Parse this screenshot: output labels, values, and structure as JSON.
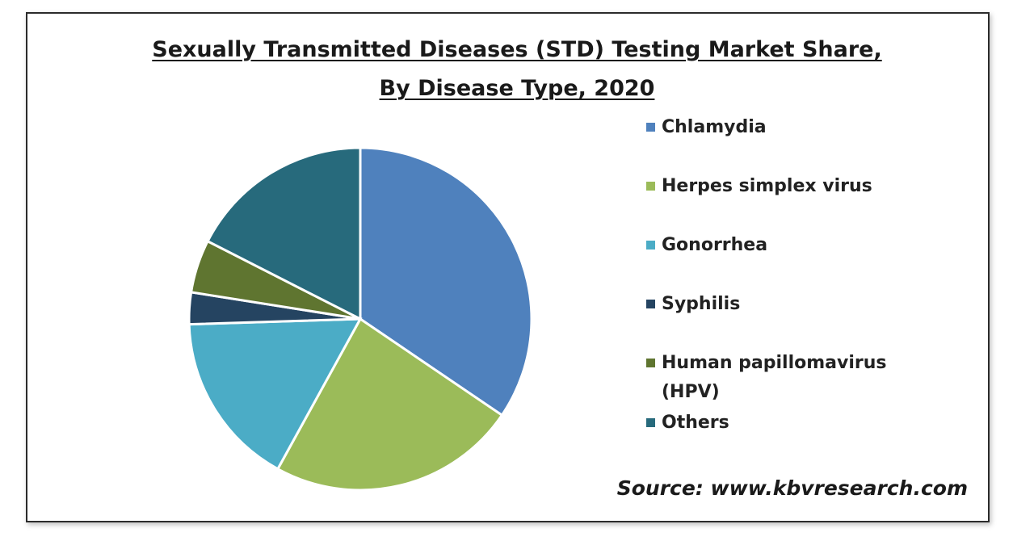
{
  "chart_data": {
    "type": "pie",
    "title_line1": "Sexually Transmitted Diseases (STD) Testing Market Share,",
    "title_line2": "By Disease Type, 2020",
    "slices": [
      {
        "label": "Chlamydia",
        "value": 34.5,
        "color": "#4f81bd"
      },
      {
        "label": "Herpes simplex virus",
        "value": 23.5,
        "color": "#9bbb59"
      },
      {
        "label": "Gonorrhea",
        "value": 16.5,
        "color": "#4bacc6"
      },
      {
        "label": "Syphilis",
        "value": 3.0,
        "color": "#254461"
      },
      {
        "label": "Human papillomavirus (HPV)",
        "value": 5.0,
        "color": "#5f7530"
      },
      {
        "label": "Others",
        "value": 17.5,
        "color": "#276a7c"
      }
    ],
    "legend_position": "right",
    "source": "Source: www.kbvresearch.com"
  }
}
